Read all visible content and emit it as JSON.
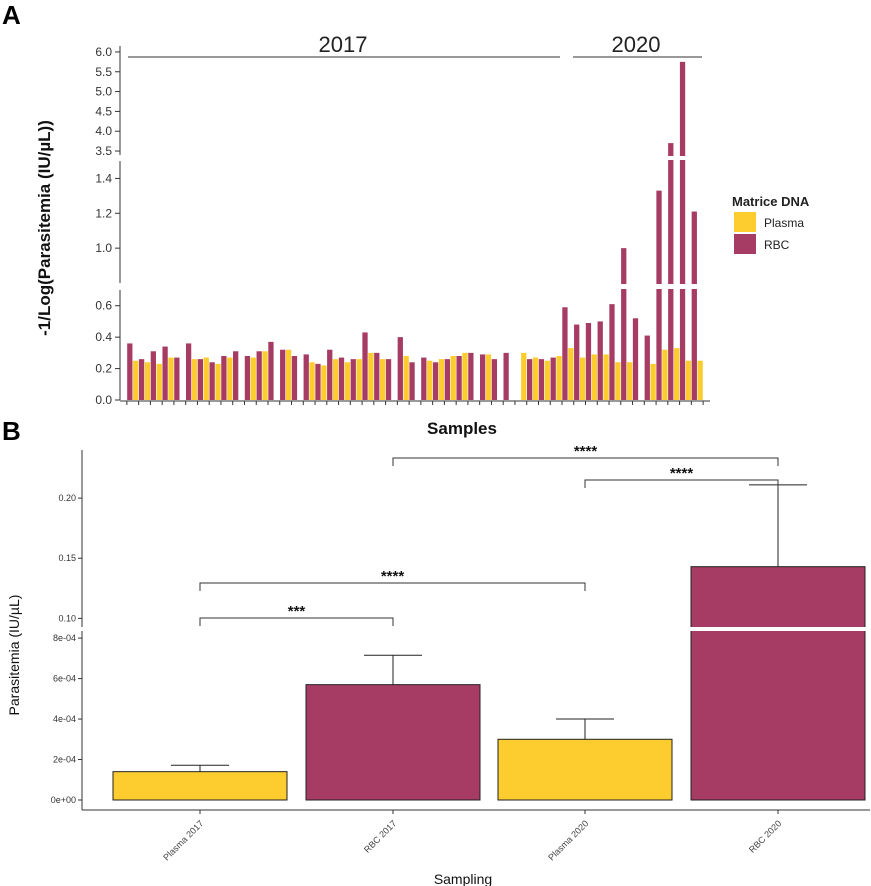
{
  "colors": {
    "plasma": "#FDCC2E",
    "rbc": "#A63B63",
    "axis": "#333333",
    "break": "#ffffff"
  },
  "chart_data": [
    {
      "panel": "A",
      "type": "bar",
      "title": "",
      "xlabel": "Samples",
      "ylabel": "-1/Log(Parasitemia (IU/µL))",
      "legend": {
        "title": "Matrice DNA",
        "entries": [
          "Plasma",
          "RBC"
        ],
        "placement": "right"
      },
      "group_labels": [
        "2017",
        "2020"
      ],
      "segments": [
        {
          "range": [
            0,
            0.7
          ],
          "ticks": [
            0.0,
            0.2,
            0.4,
            0.6
          ],
          "tick_labels": [
            "0.0",
            "0.2",
            "0.4",
            "0.6"
          ]
        },
        {
          "range": [
            0.8,
            1.5
          ],
          "ticks": [
            1.0,
            1.2,
            1.4
          ],
          "tick_labels": [
            "1.0",
            "1.2",
            "1.4"
          ]
        },
        {
          "range": [
            3.4,
            6.15
          ],
          "ticks": [
            3.5,
            4.0,
            4.5,
            5.0,
            5.5,
            6.0
          ],
          "tick_labels": [
            "3.5",
            "4.0",
            "4.5",
            "5.0",
            "5.5",
            "6.0"
          ]
        }
      ],
      "series_order": [
        "plasma",
        "rbc"
      ],
      "pairs": [
        [
          null,
          0.36
        ],
        [
          0.25,
          0.26
        ],
        [
          0.24,
          0.31
        ],
        [
          0.23,
          0.34
        ],
        [
          0.27,
          0.27
        ],
        [
          null,
          0.36
        ],
        [
          0.26,
          0.26
        ],
        [
          0.27,
          0.24
        ],
        [
          0.23,
          0.28
        ],
        [
          0.27,
          0.31
        ],
        [
          null,
          0.28
        ],
        [
          0.27,
          0.31
        ],
        [
          0.31,
          0.37
        ],
        [
          null,
          0.32
        ],
        [
          0.32,
          0.28
        ],
        [
          null,
          0.29
        ],
        [
          0.24,
          0.23
        ],
        [
          0.22,
          0.32
        ],
        [
          0.26,
          0.27
        ],
        [
          0.24,
          0.26
        ],
        [
          0.26,
          0.43
        ],
        [
          0.3,
          0.3
        ],
        [
          0.26,
          0.26
        ],
        [
          null,
          0.4
        ],
        [
          0.28,
          0.24
        ],
        [
          null,
          0.27
        ],
        [
          0.25,
          0.24
        ],
        [
          0.26,
          0.26
        ],
        [
          0.28,
          0.28
        ],
        [
          0.3,
          0.3
        ],
        [
          null,
          0.29
        ],
        [
          0.29,
          0.26
        ],
        [
          null,
          0.3
        ],
        [
          null,
          null
        ],
        [
          0.3,
          0.26
        ],
        [
          0.27,
          0.26
        ],
        [
          0.25,
          0.27
        ],
        [
          0.28,
          0.59
        ],
        [
          0.33,
          0.48
        ],
        [
          0.27,
          0.49
        ],
        [
          0.29,
          0.5
        ],
        [
          0.29,
          0.61
        ],
        [
          0.24,
          1.0
        ],
        [
          0.24,
          0.52
        ],
        [
          null,
          0.41
        ],
        [
          0.23,
          1.33
        ],
        [
          0.32,
          3.7
        ],
        [
          0.33,
          5.75
        ],
        [
          0.25,
          1.21
        ],
        [
          0.25,
          null
        ]
      ]
    },
    {
      "panel": "B",
      "type": "bar",
      "title": "",
      "xlabel": "Sampling",
      "ylabel": "Parasitemia (IU/µL)",
      "categories": [
        "Plasma 2017",
        "RBC 2017",
        "Plasma 2020",
        "RBC 2020"
      ],
      "values": [
        0.00014,
        0.00057,
        0.0003,
        0.143
      ],
      "errors": [
        0.000172,
        0.000715,
        0.0004,
        0.211
      ],
      "series_colors": [
        "plasma",
        "rbc",
        "plasma",
        "rbc"
      ],
      "segments": [
        {
          "range": [
            0,
            0.00084
          ],
          "ticks": [
            0,
            0.0002,
            0.0004,
            0.0006,
            0.0008
          ],
          "tick_labels": [
            "0e+00",
            "2e-04",
            "4e-04",
            "6e-04",
            "8e-04"
          ]
        },
        {
          "range": [
            0.092,
            0.24
          ],
          "ticks": [
            0.1,
            0.15,
            0.2
          ],
          "tick_labels": [
            "0.10",
            "0.15",
            "0.20"
          ]
        }
      ],
      "significance": [
        {
          "from": 0,
          "to": 1,
          "label": "***"
        },
        {
          "from": 0,
          "to": 2,
          "label": "****"
        },
        {
          "from": 2,
          "to": 3,
          "label": "****"
        },
        {
          "from": 1,
          "to": 3,
          "label": "****"
        }
      ]
    }
  ],
  "labels": {
    "panel_a": "A",
    "panel_b": "B"
  }
}
